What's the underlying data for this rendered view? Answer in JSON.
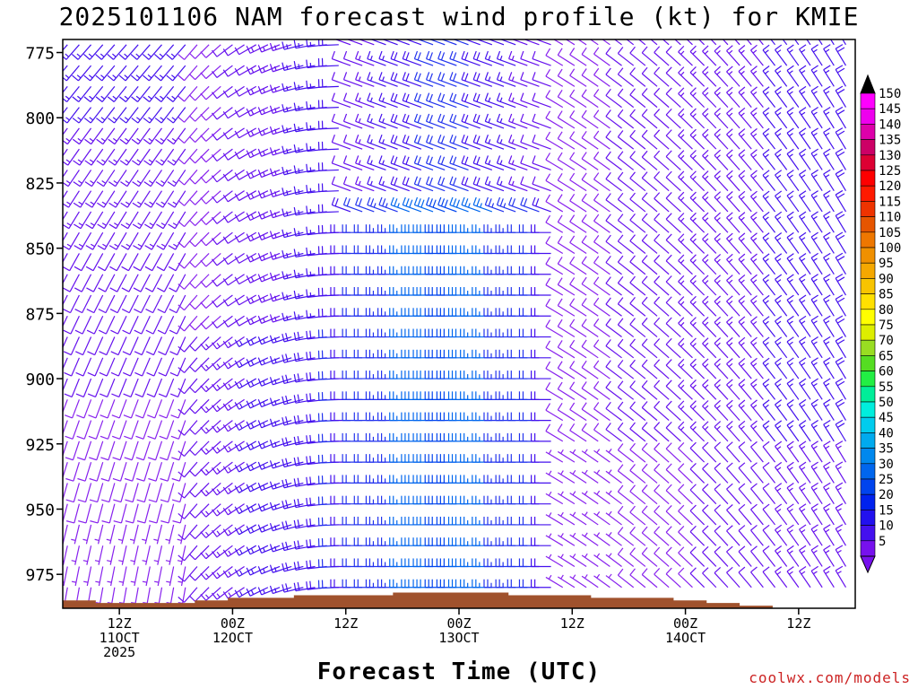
{
  "title": "2025101106 NAM forecast wind profile (kt) for KMIE",
  "xlabel": "Forecast Time (UTC)",
  "credit": "coolwx.com/models",
  "chart_data": {
    "type": "wind-profile",
    "title": "2025101106 NAM forecast wind profile (kt) for KMIE",
    "xlabel": "Forecast Time (UTC)",
    "ylabel": "",
    "yaxis_reversed": true,
    "y_ticks": [
      775,
      800,
      825,
      850,
      875,
      900,
      925,
      950,
      975
    ],
    "ylim": [
      770,
      988
    ],
    "x_ticks": [
      {
        "hour": 6,
        "lines": [
          "12Z",
          "11OCT",
          "2025"
        ]
      },
      {
        "hour": 18,
        "lines": [
          "00Z",
          "12OCT"
        ]
      },
      {
        "hour": 30,
        "lines": [
          "12Z"
        ]
      },
      {
        "hour": 42,
        "lines": [
          "00Z",
          "13OCT"
        ]
      },
      {
        "hour": 54,
        "lines": [
          "12Z"
        ]
      },
      {
        "hour": 66,
        "lines": [
          "00Z",
          "14OCT"
        ]
      },
      {
        "hour": 78,
        "lines": [
          "12Z"
        ]
      }
    ],
    "xlim_hours": [
      0,
      84
    ],
    "colorbar_ticks": [
      150,
      145,
      140,
      135,
      130,
      125,
      120,
      115,
      110,
      105,
      100,
      95,
      90,
      85,
      80,
      75,
      70,
      65,
      60,
      55,
      50,
      45,
      40,
      35,
      30,
      25,
      20,
      15,
      10,
      5
    ],
    "colorbar_colors": [
      "#ff00ff",
      "#ee00ee",
      "#dd00aa",
      "#cc0066",
      "#dd0033",
      "#ff0000",
      "#ff1a00",
      "#ee3300",
      "#e65500",
      "#ee7700",
      "#f09000",
      "#f5a800",
      "#f8c400",
      "#ffe000",
      "#ffff00",
      "#ddee00",
      "#99dd22",
      "#55dd22",
      "#22ee44",
      "#00ee99",
      "#00eedd",
      "#00ccee",
      "#00aaee",
      "#0088ee",
      "#0066ee",
      "#0044ee",
      "#0022ee",
      "#2211ee",
      "#4411ee",
      "#7711ee"
    ],
    "wind_profile_summary": [
      {
        "hour_range": [
          0,
          14
        ],
        "level_range": [
          775,
          980
        ],
        "dominant": "light southerly 5-15 kt"
      },
      {
        "hour_range": [
          14,
          30
        ],
        "level_range": [
          825,
          975
        ],
        "dominant": "westerly 10-20 kt"
      },
      {
        "hour_range": [
          30,
          52
        ],
        "level_range": [
          840,
          975
        ],
        "dominant": "strong westerly 20-30 kt"
      },
      {
        "hour_range": [
          52,
          84
        ],
        "level_range": [
          775,
          975
        ],
        "dominant": "northwesterly 5-20 kt"
      }
    ],
    "terrain_pressure_hpa": [
      985,
      985,
      986,
      986,
      986,
      986,
      986,
      986,
      985,
      985,
      984,
      984,
      984,
      984,
      983,
      983,
      983,
      983,
      983,
      983,
      982,
      982,
      982,
      982,
      982,
      982,
      982,
      983,
      983,
      983,
      983,
      983,
      984,
      984,
      984,
      984,
      984,
      985,
      985,
      986,
      986,
      987,
      987,
      988,
      988,
      988,
      988,
      988
    ]
  }
}
